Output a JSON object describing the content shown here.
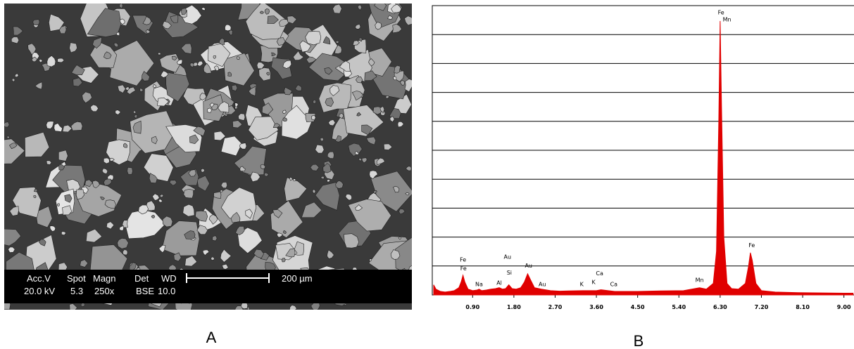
{
  "sem_image": {
    "label": "A",
    "info_bar": {
      "headers": [
        "Acc.V",
        "Spot",
        "Magn",
        "Det",
        "WD"
      ],
      "values": [
        "20.0 kV",
        "5.3",
        "250x",
        "BSE",
        "10.0"
      ],
      "scale_bar": "200 µm"
    }
  },
  "chart_data": {
    "type": "area",
    "label": "B",
    "xlim": [
      0.02,
      9.22
    ],
    "xticks": [
      {
        "value": 0.9,
        "label": "0.90"
      },
      {
        "value": 1.8,
        "label": "1.80"
      },
      {
        "value": 2.7,
        "label": "2.70"
      },
      {
        "value": 3.6,
        "label": "3.60"
      },
      {
        "value": 4.5,
        "label": "4.50"
      },
      {
        "value": 5.4,
        "label": "5.40"
      },
      {
        "value": 6.3,
        "label": "6.30"
      },
      {
        "value": 7.2,
        "label": "7.20"
      },
      {
        "value": 8.1,
        "label": "8.10"
      },
      {
        "value": 9.0,
        "label": "9.00"
      }
    ],
    "ylim": [
      0,
      10
    ],
    "yticks": [
      1,
      2,
      3,
      4,
      5,
      6,
      7,
      8,
      9
    ],
    "show_ytick_labels": false,
    "grid": true,
    "series": [
      {
        "color": "#e00000",
        "x": [
          0.05,
          0.1,
          0.2,
          0.3,
          0.4,
          0.5,
          0.6,
          0.65,
          0.69,
          0.73,
          0.8,
          0.9,
          1.0,
          1.04,
          1.1,
          1.2,
          1.3,
          1.4,
          1.48,
          1.55,
          1.62,
          1.69,
          1.76,
          1.85,
          1.95,
          2.03,
          2.1,
          2.17,
          2.25,
          2.4,
          2.6,
          2.8,
          3.0,
          3.3,
          3.6,
          3.7,
          4.0,
          4.5,
          5.0,
          5.5,
          5.85,
          6.0,
          6.15,
          6.22,
          6.27,
          6.3,
          6.33,
          6.38,
          6.45,
          6.55,
          6.7,
          6.85,
          6.92,
          6.96,
          7.0,
          7.08,
          7.2,
          7.5,
          8.0,
          8.5,
          9.0,
          9.2
        ],
        "values": [
          0.35,
          0.2,
          0.12,
          0.1,
          0.12,
          0.15,
          0.25,
          0.45,
          0.68,
          0.45,
          0.2,
          0.15,
          0.17,
          0.2,
          0.15,
          0.17,
          0.2,
          0.22,
          0.25,
          0.2,
          0.22,
          0.35,
          0.22,
          0.2,
          0.25,
          0.45,
          0.73,
          0.5,
          0.25,
          0.2,
          0.15,
          0.13,
          0.14,
          0.15,
          0.15,
          0.18,
          0.12,
          0.12,
          0.14,
          0.15,
          0.25,
          0.2,
          0.4,
          1.5,
          6.0,
          9.47,
          6.5,
          2.0,
          0.4,
          0.22,
          0.2,
          0.4,
          1.0,
          1.46,
          1.2,
          0.4,
          0.15,
          0.1,
          0.08,
          0.07,
          0.06,
          0.06
        ]
      }
    ],
    "annotations": [
      {
        "text": "Fe",
        "x": 0.69,
        "y": 1.15
      },
      {
        "text": "Fe",
        "x": 0.7,
        "y": 0.85
      },
      {
        "text": "Na",
        "x": 1.04,
        "y": 0.3
      },
      {
        "text": "Al",
        "x": 1.48,
        "y": 0.35
      },
      {
        "text": "Au",
        "x": 1.66,
        "y": 1.25
      },
      {
        "text": "Si",
        "x": 1.7,
        "y": 0.7
      },
      {
        "text": "Au",
        "x": 2.12,
        "y": 0.95
      },
      {
        "text": "Au",
        "x": 2.42,
        "y": 0.3
      },
      {
        "text": "K",
        "x": 3.28,
        "y": 0.3
      },
      {
        "text": "K",
        "x": 3.54,
        "y": 0.38
      },
      {
        "text": "Ca",
        "x": 3.67,
        "y": 0.68
      },
      {
        "text": "Ca",
        "x": 3.98,
        "y": 0.3
      },
      {
        "text": "Mn",
        "x": 5.85,
        "y": 0.45
      },
      {
        "text": "Fe",
        "x": 6.32,
        "y": 9.7
      },
      {
        "text": "Mn",
        "x": 6.45,
        "y": 9.45
      },
      {
        "text": "Fe",
        "x": 6.99,
        "y": 1.65
      }
    ]
  }
}
